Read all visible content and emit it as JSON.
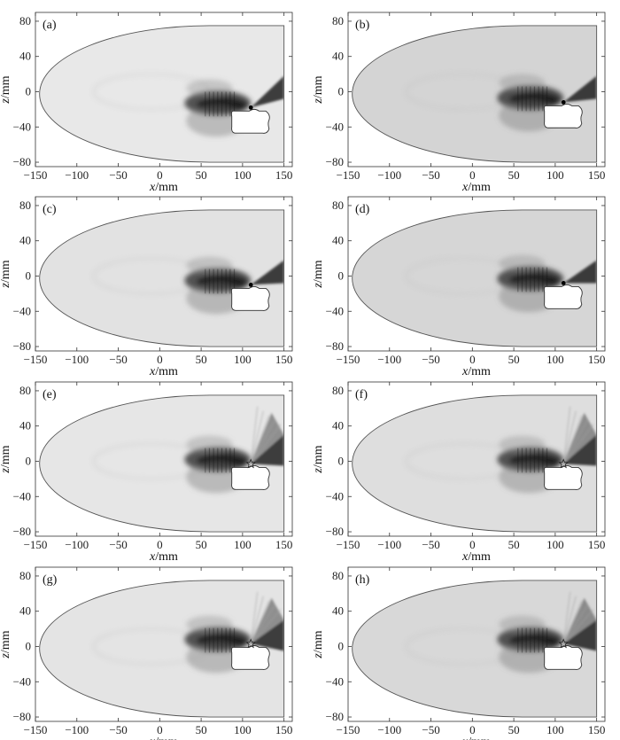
{
  "chart_data": [
    {
      "label": "(a)",
      "type": "heatmap",
      "xlabel_var": "x",
      "ylabel_var": "z",
      "unit": "/mm",
      "xticks": [
        -150,
        -100,
        -50,
        0,
        50,
        100,
        150
      ],
      "yticks": [
        80,
        40,
        0,
        -40,
        -80
      ],
      "xlim": [
        -150,
        160
      ],
      "ylim": [
        -85,
        90
      ],
      "grid": false,
      "source": [
        110,
        -18
      ],
      "marker": "dot",
      "background": "#e8e8e8",
      "beam": [
        [
          "left",
          -10
        ],
        [
          "right",
          5
        ]
      ]
    },
    {
      "label": "(b)",
      "type": "heatmap",
      "xlabel_var": "x",
      "ylabel_var": "z",
      "unit": "/mm",
      "xticks": [
        -150,
        -100,
        -50,
        0,
        50,
        100,
        150
      ],
      "yticks": [
        80,
        40,
        0,
        -40,
        -80
      ],
      "xlim": [
        -150,
        160
      ],
      "ylim": [
        -85,
        90
      ],
      "grid": false,
      "source": [
        110,
        -12
      ],
      "marker": "dot",
      "background": "#d4d4d4",
      "beam": [
        [
          "left",
          -8
        ],
        [
          "right",
          5
        ]
      ]
    },
    {
      "label": "(c)",
      "type": "heatmap",
      "xlabel_var": "x",
      "ylabel_var": "z",
      "unit": "/mm",
      "xticks": [
        -150,
        -100,
        -50,
        0,
        50,
        100,
        150
      ],
      "yticks": [
        80,
        40,
        0,
        -40,
        -80
      ],
      "xlim": [
        -150,
        160
      ],
      "ylim": [
        -85,
        90
      ],
      "grid": false,
      "source": [
        110,
        -10
      ],
      "marker": "dot",
      "background": "#e2e2e2",
      "beam": [
        [
          "left",
          -8
        ],
        [
          "right",
          8
        ]
      ]
    },
    {
      "label": "(d)",
      "type": "heatmap",
      "xlabel_var": "x",
      "ylabel_var": "z",
      "unit": "/mm",
      "xticks": [
        -150,
        -100,
        -50,
        0,
        50,
        100,
        150
      ],
      "yticks": [
        80,
        40,
        0,
        -40,
        -80
      ],
      "xlim": [
        -150,
        160
      ],
      "ylim": [
        -85,
        90
      ],
      "grid": false,
      "source": [
        110,
        -8
      ],
      "marker": "dot",
      "background": "#d6d6d6",
      "beam": [
        [
          "left",
          -8
        ],
        [
          "right",
          10
        ]
      ]
    },
    {
      "label": "(e)",
      "type": "heatmap",
      "xlabel_var": "x",
      "ylabel_var": "z",
      "unit": "/mm",
      "xticks": [
        -150,
        -100,
        -50,
        0,
        50,
        100,
        150
      ],
      "yticks": [
        80,
        40,
        0,
        -40,
        -80
      ],
      "xlim": [
        -150,
        160
      ],
      "ylim": [
        -85,
        90
      ],
      "grid": false,
      "source": [
        110,
        -3
      ],
      "marker": "star",
      "background": "#e6e6e6",
      "beam": [
        [
          "left",
          -6
        ],
        [
          "up",
          20
        ]
      ]
    },
    {
      "label": "(f)",
      "type": "heatmap",
      "xlabel_var": "x",
      "ylabel_var": "z",
      "unit": "/mm",
      "xticks": [
        -150,
        -100,
        -50,
        0,
        50,
        100,
        150
      ],
      "yticks": [
        80,
        40,
        0,
        -40,
        -80
      ],
      "xlim": [
        -150,
        160
      ],
      "ylim": [
        -85,
        90
      ],
      "grid": false,
      "source": [
        110,
        -3
      ],
      "marker": "star",
      "background": "#dedede",
      "beam": [
        [
          "left",
          -6
        ],
        [
          "up",
          20
        ]
      ]
    },
    {
      "label": "(g)",
      "type": "heatmap",
      "xlabel_var": "x",
      "ylabel_var": "z",
      "unit": "/mm",
      "xticks": [
        -150,
        -100,
        -50,
        0,
        50,
        100,
        150
      ],
      "yticks": [
        80,
        40,
        0,
        -40,
        -80
      ],
      "xlim": [
        -150,
        160
      ],
      "ylim": [
        -85,
        90
      ],
      "grid": false,
      "source": [
        110,
        3
      ],
      "marker": "star",
      "background": "#e4e4e4",
      "beam": [
        [
          "left",
          0
        ],
        [
          "up",
          25
        ]
      ]
    },
    {
      "label": "(h)",
      "type": "heatmap",
      "xlabel_var": "x",
      "ylabel_var": "z",
      "unit": "/mm",
      "xticks": [
        -150,
        -100,
        -50,
        0,
        50,
        100,
        150
      ],
      "yticks": [
        80,
        40,
        0,
        -40,
        -80
      ],
      "xlim": [
        -150,
        160
      ],
      "ylim": [
        -85,
        90
      ],
      "grid": false,
      "source": [
        110,
        3
      ],
      "marker": "star",
      "background": "#d8d8d8",
      "beam": [
        [
          "left",
          0
        ],
        [
          "up",
          25
        ]
      ]
    }
  ],
  "colors": {
    "axis": "#333333",
    "text": "#111111",
    "dark": "#1a1a1a",
    "cavity": "#ffffff"
  }
}
